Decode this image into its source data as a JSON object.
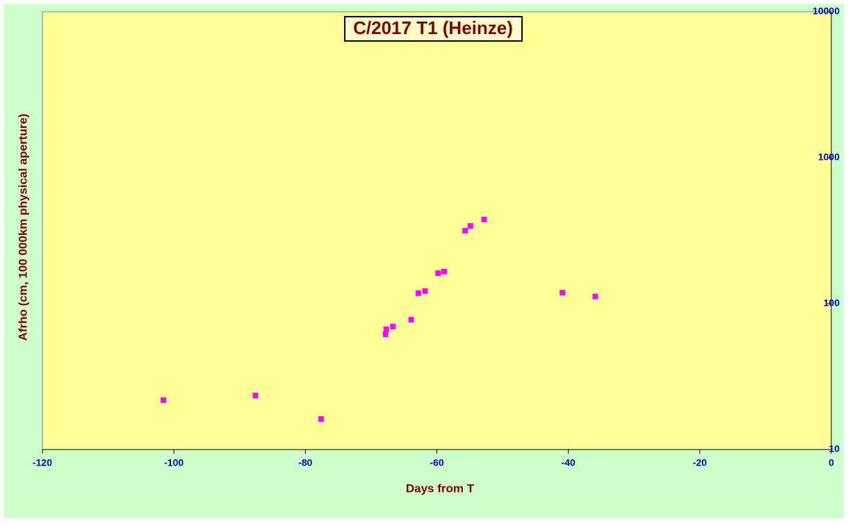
{
  "chart_data": {
    "type": "scatter",
    "title": "C/2017 T1 (Heinze)",
    "x_label": "Days from T",
    "y_label": "Afrho (cm, 100 000km physical aperture)",
    "x": [
      -101.6,
      -87.6,
      -77.6,
      -67.8,
      -67.7,
      -66.7,
      -63.9,
      -62.8,
      -61.8,
      -59.8,
      -58.9,
      -55.7,
      -54.9,
      -52.8,
      -40.9,
      -35.9
    ],
    "values": [
      21.8,
      23.5,
      16.2,
      61.7,
      66.7,
      69.6,
      77.6,
      118,
      122,
      162,
      166,
      316,
      341,
      377,
      119,
      112
    ],
    "color": "#ff00ff",
    "xlim": [
      -120,
      0
    ],
    "xticks": [
      -120,
      -100,
      -80,
      -60,
      -40,
      -20,
      0
    ],
    "ylim": [
      10,
      10000
    ],
    "yticks": [
      10,
      100,
      1000,
      10000
    ],
    "y_scale": "log",
    "y_axis_side": "right",
    "grid": false
  }
}
